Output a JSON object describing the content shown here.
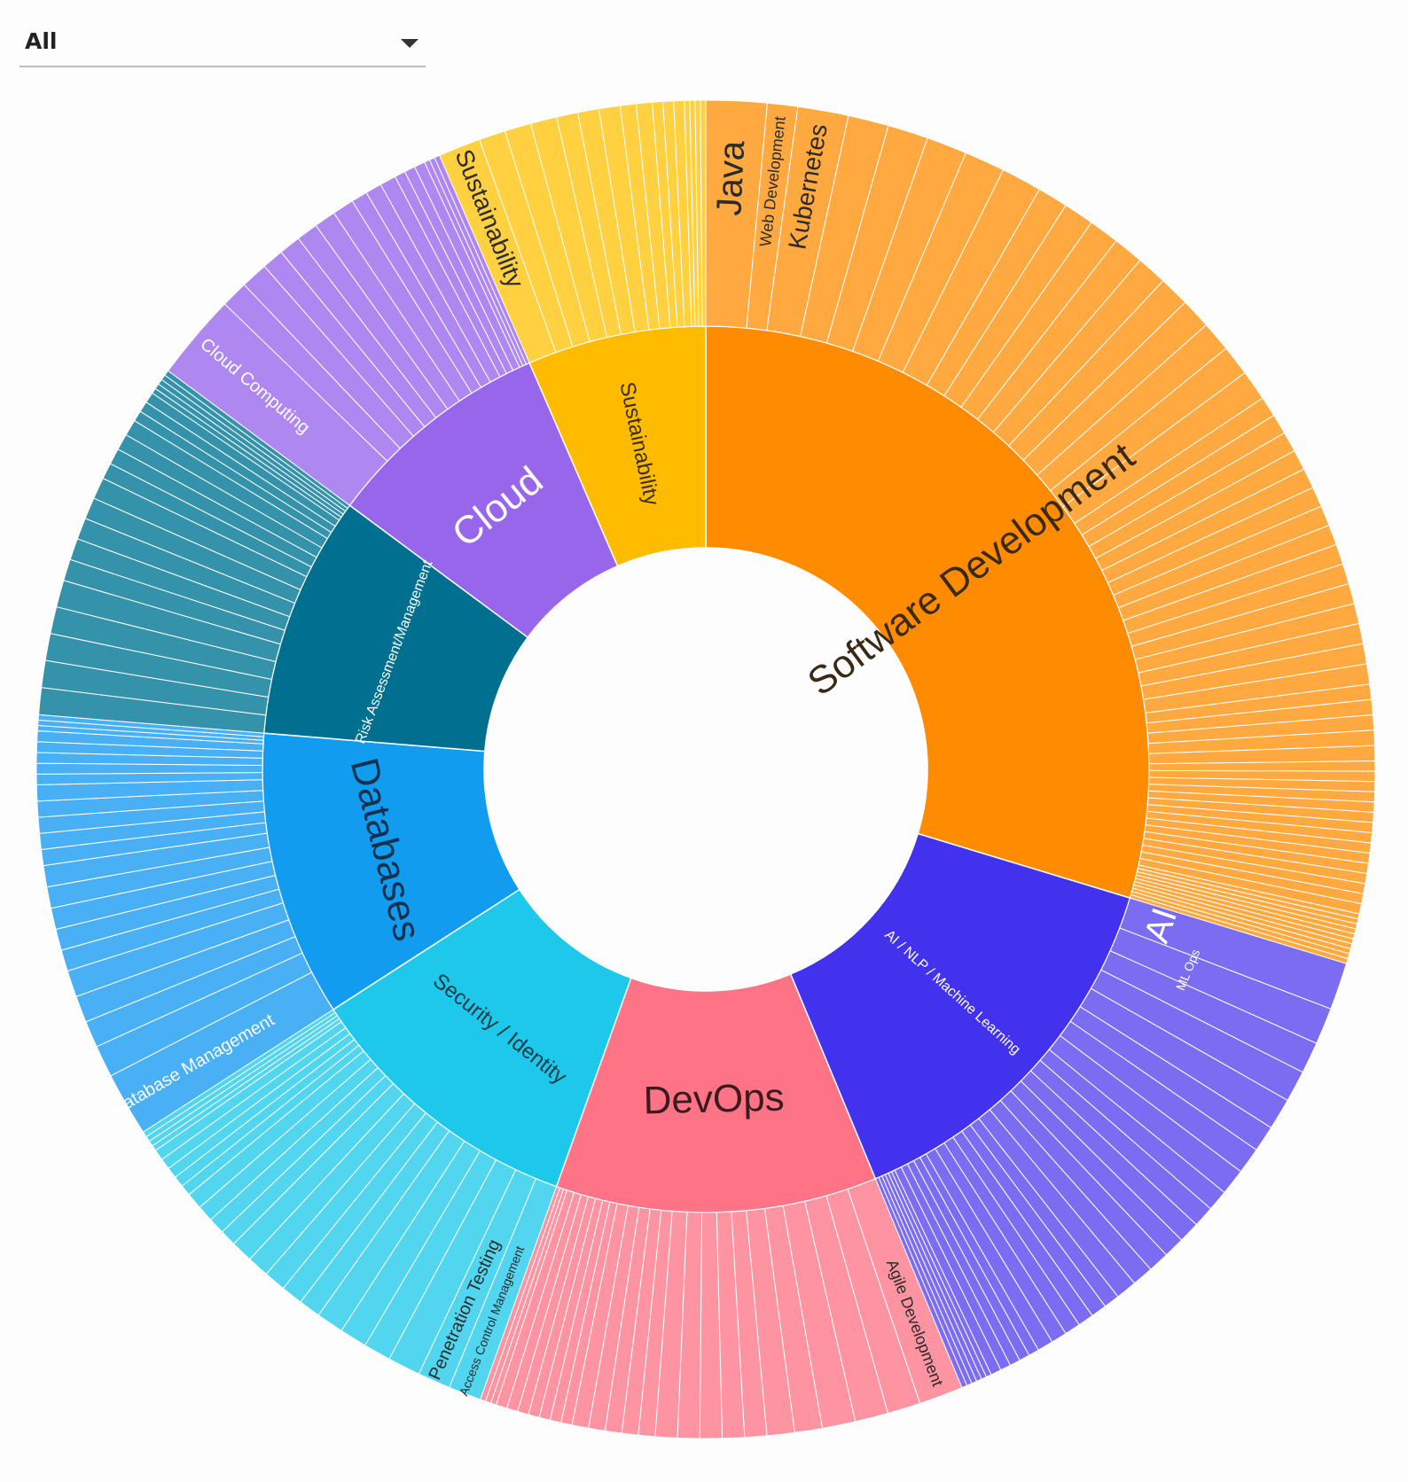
{
  "filter": {
    "selected": "All",
    "icon": "chevron-down-icon"
  },
  "chart_data": {
    "type": "sunburst",
    "title": "",
    "categories": [
      {
        "label": "Software Development",
        "value": 114,
        "color": "#ff8c00",
        "outer_color": "#ffa940",
        "children": [
          {
            "label": "Java",
            "value": 6
          },
          {
            "label": "Web Development",
            "value": 3
          },
          {
            "label": "Kubernetes",
            "value": 5
          },
          {
            "value": 4
          },
          {
            "value": 4
          },
          {
            "value": 4
          },
          {
            "value": 4
          },
          {
            "value": 4
          },
          {
            "value": 3
          },
          {
            "value": 3
          },
          {
            "value": 3
          },
          {
            "value": 3
          },
          {
            "value": 3
          },
          {
            "value": 3
          },
          {
            "value": 3
          },
          {
            "value": 3
          },
          {
            "value": 3
          },
          {
            "value": 3
          },
          {
            "value": 2
          },
          {
            "value": 2
          },
          {
            "value": 2
          },
          {
            "value": 2
          },
          {
            "value": 2
          },
          {
            "value": 2
          },
          {
            "value": 2
          },
          {
            "value": 2
          },
          {
            "value": 2
          },
          {
            "value": 2
          },
          {
            "value": 2
          },
          {
            "value": 2
          },
          {
            "value": 2
          },
          {
            "value": 2
          },
          {
            "value": 2
          },
          {
            "value": 1.5
          },
          {
            "value": 1.5
          },
          {
            "value": 1.5
          },
          {
            "value": 1.5
          },
          {
            "value": 1.5
          },
          {
            "value": 1
          },
          {
            "value": 1
          },
          {
            "value": 1
          },
          {
            "value": 1
          },
          {
            "value": 1
          },
          {
            "value": 1
          },
          {
            "value": 1
          },
          {
            "value": 1
          },
          {
            "value": 1
          },
          {
            "value": 1
          },
          {
            "value": 1
          },
          {
            "value": 1
          },
          {
            "value": 1
          },
          {
            "value": 1
          },
          {
            "value": 1
          },
          {
            "value": 0.5
          },
          {
            "value": 0.5
          },
          {
            "value": 0.5
          },
          {
            "value": 0.5
          },
          {
            "value": 0.5
          },
          {
            "value": 0.5
          },
          {
            "value": 0.5
          },
          {
            "value": 0.5
          },
          {
            "value": 0.5
          },
          {
            "value": 0.5
          }
        ]
      },
      {
        "label": "AI / NLP / Machine Learning",
        "value": 54,
        "color": "#4232ee",
        "outer_color": "#7b6cf1",
        "children": [
          {
            "label": "AI",
            "value": 4.5
          },
          {
            "label": "ML Ops",
            "value": 3.5
          },
          {
            "value": 3
          },
          {
            "value": 3
          },
          {
            "value": 3
          },
          {
            "value": 2.5
          },
          {
            "value": 2.5
          },
          {
            "value": 2.5
          },
          {
            "value": 2
          },
          {
            "value": 2
          },
          {
            "value": 2
          },
          {
            "value": 2
          },
          {
            "value": 2
          },
          {
            "value": 2
          },
          {
            "value": 2
          },
          {
            "value": 1.5
          },
          {
            "value": 1.5
          },
          {
            "value": 1.5
          },
          {
            "value": 1.5
          },
          {
            "value": 1.5
          },
          {
            "value": 1.5
          },
          {
            "value": 1
          },
          {
            "value": 1
          },
          {
            "value": 1
          },
          {
            "value": 1
          },
          {
            "value": 1
          },
          {
            "value": 0.5
          },
          {
            "value": 0.5
          },
          {
            "value": 0.5
          },
          {
            "value": 0.5
          },
          {
            "value": 0.5
          },
          {
            "value": 0.5
          }
        ]
      },
      {
        "label": "DevOps",
        "value": 45,
        "color": "#fe7486",
        "outer_color": "#fe93a1",
        "children": [
          {
            "label": "Agile Development",
            "value": 4
          },
          {
            "value": 3
          },
          {
            "value": 3
          },
          {
            "value": 3
          },
          {
            "value": 2.5
          },
          {
            "value": 2.5
          },
          {
            "value": 2
          },
          {
            "value": 2
          },
          {
            "value": 2
          },
          {
            "value": 2
          },
          {
            "value": 2
          },
          {
            "value": 1.5
          },
          {
            "value": 1.5
          },
          {
            "value": 1.5
          },
          {
            "value": 1.5
          },
          {
            "value": 1.5
          },
          {
            "value": 1
          },
          {
            "value": 1
          },
          {
            "value": 1
          },
          {
            "value": 1
          },
          {
            "value": 1
          },
          {
            "value": 1
          },
          {
            "value": 1
          },
          {
            "value": 0.5
          },
          {
            "value": 0.5
          },
          {
            "value": 0.5
          }
        ]
      },
      {
        "label": "Security / Identity",
        "value": 40,
        "color": "#1ec8eb",
        "outer_color": "#52d6f0",
        "children": [
          {
            "label": "Access Control Management",
            "value": 3
          },
          {
            "label": "Penetration Testing",
            "value": 3
          },
          {
            "value": 3
          },
          {
            "value": 2.5
          },
          {
            "value": 2.5
          },
          {
            "value": 2.5
          },
          {
            "value": 2
          },
          {
            "value": 2
          },
          {
            "value": 2
          },
          {
            "value": 2
          },
          {
            "value": 2
          },
          {
            "value": 1.5
          },
          {
            "value": 1.5
          },
          {
            "value": 1.5
          },
          {
            "value": 1.5
          },
          {
            "value": 1
          },
          {
            "value": 1
          },
          {
            "value": 1
          },
          {
            "value": 1
          },
          {
            "value": 1
          },
          {
            "value": 0.5
          },
          {
            "value": 0.5
          },
          {
            "value": 0.5
          },
          {
            "value": 0.5
          }
        ]
      },
      {
        "label": "Databases",
        "value": 40,
        "color": "#129cf0",
        "outer_color": "#49b0f5",
        "children": [
          {
            "label": "Database Management",
            "value": 6
          },
          {
            "value": 3
          },
          {
            "value": 2.5
          },
          {
            "value": 2.5
          },
          {
            "value": 2.5
          },
          {
            "value": 2
          },
          {
            "value": 2
          },
          {
            "value": 2
          },
          {
            "value": 2
          },
          {
            "value": 2
          },
          {
            "value": 1.5
          },
          {
            "value": 1.5
          },
          {
            "value": 1.5
          },
          {
            "value": 1.5
          },
          {
            "value": 1.5
          },
          {
            "value": 1
          },
          {
            "value": 1
          },
          {
            "value": 1
          },
          {
            "value": 1
          },
          {
            "value": 1
          },
          {
            "value": 0.5
          },
          {
            "value": 0.5
          },
          {
            "value": 0.5
          }
        ]
      },
      {
        "label": "Risk Assessment/Management",
        "value": 34,
        "color": "#006f90",
        "outer_color": "#3592ab",
        "children": [
          {
            "value": 2.5
          },
          {
            "value": 2.5
          },
          {
            "value": 2.5
          },
          {
            "value": 2.5
          },
          {
            "value": 2.5
          },
          {
            "value": 2
          },
          {
            "value": 2
          },
          {
            "value": 2
          },
          {
            "value": 2
          },
          {
            "value": 2
          },
          {
            "value": 1.5
          },
          {
            "value": 1.5
          },
          {
            "value": 1.5
          },
          {
            "value": 1.5
          },
          {
            "value": 1
          },
          {
            "value": 1
          },
          {
            "value": 1
          },
          {
            "value": 0.5
          },
          {
            "value": 0.5
          },
          {
            "value": 0.5
          },
          {
            "value": 0.5
          },
          {
            "value": 0.5
          }
        ]
      },
      {
        "label": "Cloud",
        "value": 32,
        "color": "#9766ea",
        "outer_color": "#ae87f0",
        "children": [
          {
            "label": "Cloud Computing",
            "value": 8
          },
          {
            "value": 2.5
          },
          {
            "value": 2.5
          },
          {
            "value": 2
          },
          {
            "value": 2
          },
          {
            "value": 2
          },
          {
            "value": 2
          },
          {
            "value": 2
          },
          {
            "value": 1.5
          },
          {
            "value": 1.5
          },
          {
            "value": 1.5
          },
          {
            "value": 1
          },
          {
            "value": 1
          },
          {
            "value": 1
          },
          {
            "value": 0.5
          },
          {
            "value": 0.5
          },
          {
            "value": 0.5
          }
        ]
      },
      {
        "label": "Sustainability",
        "value": 25,
        "color": "#ffbb00",
        "outer_color": "#ffd040",
        "children": [
          {
            "label": "Sustainability",
            "value": 4
          },
          {
            "value": 2.5
          },
          {
            "value": 2.5
          },
          {
            "value": 2.5
          },
          {
            "value": 2
          },
          {
            "value": 2
          },
          {
            "value": 2
          },
          {
            "value": 1.5
          },
          {
            "value": 1.5
          },
          {
            "value": 1
          },
          {
            "value": 1
          },
          {
            "value": 1
          },
          {
            "value": 0.5
          },
          {
            "value": 0.5
          },
          {
            "value": 0.5
          },
          {
            "value": 0.5
          }
        ]
      }
    ]
  }
}
